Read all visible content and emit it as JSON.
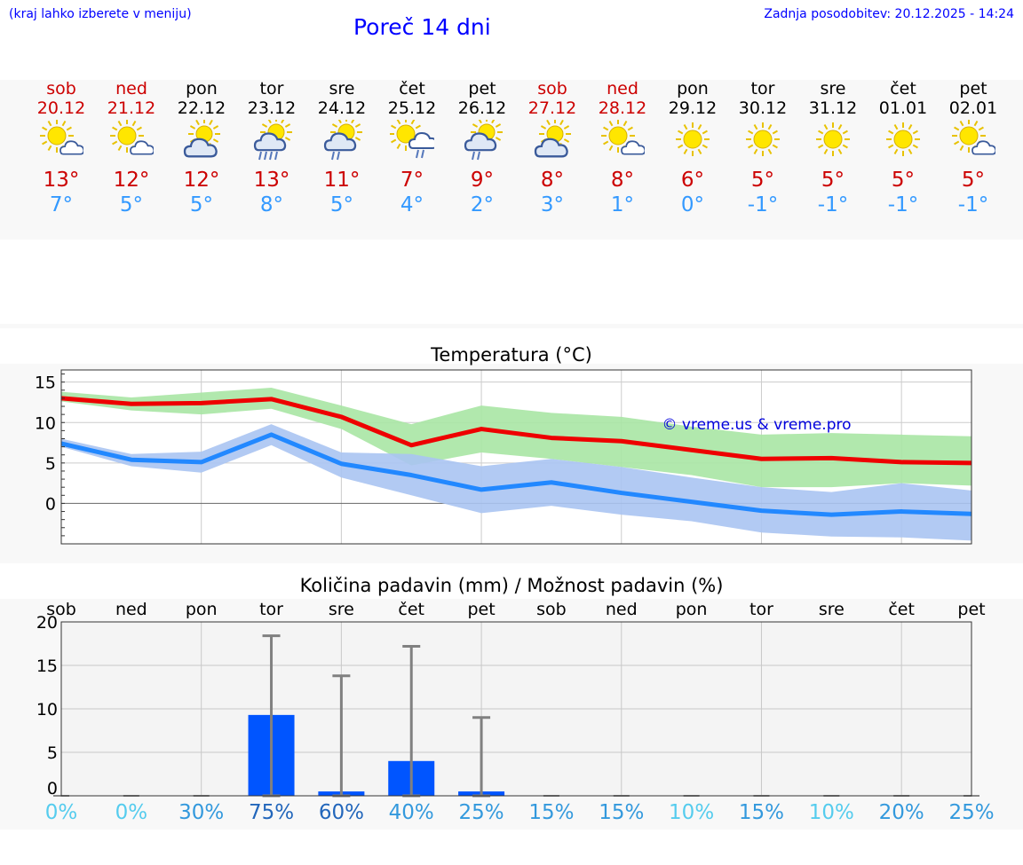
{
  "header": {
    "menu_hint": "(kraj lahko izberete v meniju)",
    "title": "Poreč 14 dni",
    "last_update": "Zadnja posodobitev: 20.12.2025 - 14:24"
  },
  "days": [
    {
      "name": "sob",
      "date": "20.12",
      "weekend": true,
      "icon": "sun-cloud-icon",
      "tmax": "13°",
      "tmin": "7°"
    },
    {
      "name": "ned",
      "date": "21.12",
      "weekend": true,
      "icon": "sun-cloud-icon",
      "tmax": "12°",
      "tmin": "5°"
    },
    {
      "name": "pon",
      "date": "22.12",
      "weekend": false,
      "icon": "partly-cloudy-icon",
      "tmax": "12°",
      "tmin": "5°"
    },
    {
      "name": "tor",
      "date": "23.12",
      "weekend": false,
      "icon": "rain-icon",
      "tmax": "13°",
      "tmin": "8°"
    },
    {
      "name": "sre",
      "date": "24.12",
      "weekend": false,
      "icon": "light-rain-icon",
      "tmax": "11°",
      "tmin": "5°"
    },
    {
      "name": "čet",
      "date": "25.12",
      "weekend": false,
      "icon": "sun-rain-icon",
      "tmax": "7°",
      "tmin": "4°"
    },
    {
      "name": "pet",
      "date": "26.12",
      "weekend": false,
      "icon": "light-rain-icon",
      "tmax": "9°",
      "tmin": "2°"
    },
    {
      "name": "sob",
      "date": "27.12",
      "weekend": true,
      "icon": "partly-cloudy-icon",
      "tmax": "8°",
      "tmin": "3°"
    },
    {
      "name": "ned",
      "date": "28.12",
      "weekend": true,
      "icon": "sun-cloud-icon",
      "tmax": "8°",
      "tmin": "1°"
    },
    {
      "name": "pon",
      "date": "29.12",
      "weekend": false,
      "icon": "sun-icon",
      "tmax": "6°",
      "tmin": "0°"
    },
    {
      "name": "tor",
      "date": "30.12",
      "weekend": false,
      "icon": "sun-icon",
      "tmax": "5°",
      "tmin": "-1°"
    },
    {
      "name": "sre",
      "date": "31.12",
      "weekend": false,
      "icon": "sun-icon",
      "tmax": "5°",
      "tmin": "-1°"
    },
    {
      "name": "čet",
      "date": "01.01",
      "weekend": false,
      "icon": "sun-icon",
      "tmax": "5°",
      "tmin": "-1°"
    },
    {
      "name": "pet",
      "date": "02.01",
      "weekend": false,
      "icon": "sun-cloud-icon",
      "tmax": "5°",
      "tmin": "-1°"
    }
  ],
  "chart_data": [
    {
      "type": "line",
      "title": "Temperatura (°C)",
      "watermark": "© vreme.us & vreme.pro",
      "ylim": [
        -5,
        16.5
      ],
      "yticks": [
        0,
        5,
        10,
        15
      ],
      "x": [
        0,
        1,
        2,
        3,
        4,
        5,
        6,
        7,
        8,
        9,
        10,
        11,
        12,
        13
      ],
      "series": [
        {
          "name": "max",
          "color": "#ee0000",
          "values": [
            13.0,
            12.3,
            12.4,
            12.9,
            10.7,
            7.2,
            9.2,
            8.1,
            7.7,
            6.6,
            5.5,
            5.6,
            5.1,
            5.0
          ],
          "band_low": [
            12.6,
            11.5,
            11.0,
            11.7,
            9.2,
            4.7,
            6.3,
            5.5,
            4.5,
            3.5,
            2.0,
            2.0,
            2.5,
            2.2
          ],
          "band_high": [
            13.8,
            13.1,
            13.7,
            14.3,
            12.1,
            9.8,
            12.1,
            11.2,
            10.7,
            9.5,
            8.5,
            8.7,
            8.5,
            8.3
          ],
          "band_color": "#a8e6a4"
        },
        {
          "name": "min",
          "color": "#2288ff",
          "values": [
            7.4,
            5.4,
            5.1,
            8.5,
            4.9,
            3.5,
            1.7,
            2.6,
            1.3,
            0.2,
            -0.9,
            -1.4,
            -1.0,
            -1.3
          ],
          "band_low": [
            7.0,
            4.6,
            3.8,
            7.2,
            3.2,
            1.0,
            -1.2,
            -0.3,
            -1.4,
            -2.2,
            -3.6,
            -4.1,
            -4.2,
            -4.6
          ],
          "band_high": [
            8.0,
            6.1,
            6.4,
            9.8,
            6.3,
            6.1,
            4.6,
            5.5,
            4.5,
            3.2,
            2.0,
            1.4,
            2.5,
            1.6
          ],
          "band_color": "#aac4f2"
        }
      ]
    },
    {
      "type": "bar",
      "title": "Količina padavin (mm) / Možnost padavin (%)",
      "categories": [
        "sob",
        "ned",
        "pon",
        "tor",
        "sre",
        "čet",
        "pet",
        "sob",
        "ned",
        "pon",
        "tor",
        "sre",
        "čet",
        "pet"
      ],
      "ylim": [
        0,
        20
      ],
      "yticks": [
        0,
        5,
        10,
        15,
        20
      ],
      "values": [
        0,
        0,
        0,
        9.3,
        0.5,
        4.0,
        0.5,
        0,
        0,
        0,
        0,
        0,
        0,
        0
      ],
      "error_high": [
        0,
        0,
        0,
        18.4,
        13.8,
        17.2,
        9.0,
        0,
        0,
        0,
        0,
        0,
        0,
        0
      ],
      "bar_color": "#0055ff",
      "probability": [
        "0%",
        "0%",
        "30%",
        "75%",
        "60%",
        "40%",
        "25%",
        "15%",
        "15%",
        "10%",
        "15%",
        "10%",
        "20%",
        "25%"
      ],
      "probability_colors": [
        "#55ccee",
        "#55ccee",
        "#3399dd",
        "#2266bb",
        "#2266bb",
        "#3399dd",
        "#3399dd",
        "#3399dd",
        "#3399dd",
        "#55ccee",
        "#3399dd",
        "#55ccee",
        "#3399dd",
        "#3399dd"
      ]
    }
  ]
}
